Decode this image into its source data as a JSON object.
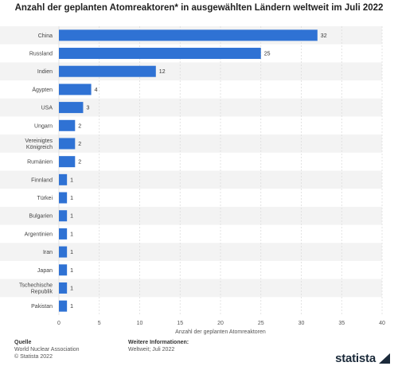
{
  "chart_data": {
    "type": "bar",
    "orientation": "horizontal",
    "title": "Anzahl der geplanten Atomreaktoren* in ausgewählten Ländern weltweit im Juli 2022",
    "xlabel": "Anzahl der geplanten Atomreaktoren",
    "ylabel": "",
    "xlim": [
      0,
      40
    ],
    "xticks": [
      0,
      5,
      10,
      15,
      20,
      25,
      30,
      35,
      40
    ],
    "grid": true,
    "bar_color": "#2f72d4",
    "categories": [
      "China",
      "Russland",
      "Indien",
      "Ägypten",
      "USA",
      "Ungarn",
      "Vereinigtes Königreich",
      "Rumänien",
      "Finnland",
      "Türkei",
      "Bulgarien",
      "Argentinien",
      "Iran",
      "Japan",
      "Tschechische Republik",
      "Pakistan"
    ],
    "category_lines": [
      [
        "China"
      ],
      [
        "Russland"
      ],
      [
        "Indien"
      ],
      [
        "Ägypten"
      ],
      [
        "USA"
      ],
      [
        "Ungarn"
      ],
      [
        "Vereinigtes",
        "Königreich"
      ],
      [
        "Rumänien"
      ],
      [
        "Finnland"
      ],
      [
        "Türkei"
      ],
      [
        "Bulgarien"
      ],
      [
        "Argentinien"
      ],
      [
        "Iran"
      ],
      [
        "Japan"
      ],
      [
        "Tschechische",
        "Republik"
      ],
      [
        "Pakistan"
      ]
    ],
    "values": [
      32,
      25,
      12,
      4,
      3,
      2,
      2,
      2,
      1,
      1,
      1,
      1,
      1,
      1,
      1,
      1
    ]
  },
  "footer": {
    "source_heading": "Quelle",
    "source_line1": "World Nuclear Association",
    "source_line2": "© Statista 2022",
    "info_heading": "Weitere Informationen:",
    "info_line1": "Weltweit; Juli 2022",
    "brand": "statista"
  }
}
